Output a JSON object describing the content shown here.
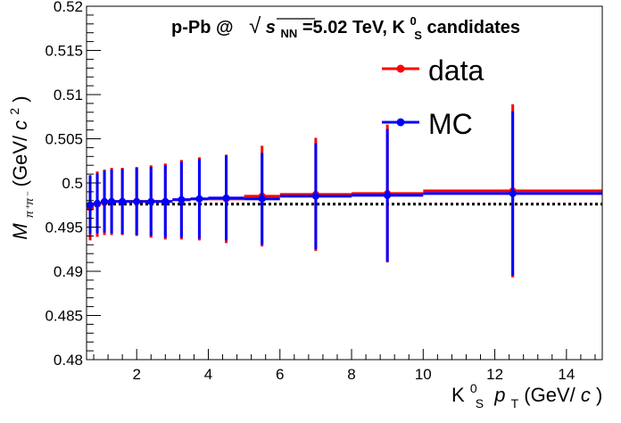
{
  "chart_data": {
    "type": "scatter",
    "title": {
      "system": "p-Pb @",
      "sqrt_symbol": "√",
      "energy_var": "s",
      "energy_sub": "NN",
      "energy_value": "=5.02 TeV, K",
      "particle_sup": "0",
      "particle_sub": "S",
      "particle_rest": " candidates"
    },
    "xlabel": {
      "particle": "K",
      "particle_sup": "0",
      "particle_sub": "S",
      "var": "p",
      "var_sub": "T",
      "unit_open": " (GeV/",
      "unit_var": "c",
      "unit_close": ")"
    },
    "ylabel": {
      "var": "M",
      "var_sub": "π⁺π⁻",
      "unit_open": " (GeV/",
      "unit_var": "c",
      "unit_sup": "2",
      "unit_close": ")"
    },
    "xlim": [
      0.6,
      15
    ],
    "ylim": [
      0.48,
      0.52
    ],
    "x_ticks": [
      2,
      4,
      6,
      8,
      10,
      12,
      14
    ],
    "x_tick_labels": [
      "2",
      "4",
      "6",
      "8",
      "10",
      "12",
      "14"
    ],
    "y_ticks": [
      0.48,
      0.485,
      0.49,
      0.495,
      0.5,
      0.505,
      0.51,
      0.515,
      0.52
    ],
    "y_tick_labels": [
      "0.48",
      "0.485",
      "0.49",
      "0.495",
      "0.5",
      "0.505",
      "0.51",
      "0.515",
      "0.52"
    ],
    "grid": false,
    "legend_position": "top-right",
    "reference_line": {
      "y": 0.4976,
      "style": "dotted",
      "color": "#000000"
    },
    "series": [
      {
        "name": "data",
        "color": "#ff0000",
        "points": [
          {
            "x": 0.7,
            "xlo": 0.6,
            "xhi": 0.8,
            "y": 0.4972,
            "err": 0.0037
          },
          {
            "x": 0.9,
            "xlo": 0.8,
            "xhi": 1.0,
            "y": 0.4976,
            "err": 0.0037
          },
          {
            "x": 1.1,
            "xlo": 1.0,
            "xhi": 1.2,
            "y": 0.4978,
            "err": 0.0037
          },
          {
            "x": 1.3,
            "xlo": 1.2,
            "xhi": 1.4,
            "y": 0.4979,
            "err": 0.0038
          },
          {
            "x": 1.6,
            "xlo": 1.4,
            "xhi": 1.8,
            "y": 0.4979,
            "err": 0.0038
          },
          {
            "x": 2.0,
            "xlo": 1.8,
            "xhi": 2.2,
            "y": 0.4979,
            "err": 0.0039
          },
          {
            "x": 2.4,
            "xlo": 2.2,
            "xhi": 2.6,
            "y": 0.4979,
            "err": 0.0041
          },
          {
            "x": 2.8,
            "xlo": 2.6,
            "xhi": 3.0,
            "y": 0.4979,
            "err": 0.0043
          },
          {
            "x": 3.25,
            "xlo": 3.0,
            "xhi": 3.5,
            "y": 0.4981,
            "err": 0.0045
          },
          {
            "x": 3.75,
            "xlo": 3.5,
            "xhi": 4.0,
            "y": 0.4982,
            "err": 0.0047
          },
          {
            "x": 4.5,
            "xlo": 4.0,
            "xhi": 5.0,
            "y": 0.4982,
            "err": 0.005
          },
          {
            "x": 5.5,
            "xlo": 5.0,
            "xhi": 6.0,
            "y": 0.4985,
            "err": 0.0057
          },
          {
            "x": 7.0,
            "xlo": 6.0,
            "xhi": 8.0,
            "y": 0.4987,
            "err": 0.0064
          },
          {
            "x": 9.0,
            "xlo": 8.0,
            "xhi": 10.0,
            "y": 0.4988,
            "err": 0.0078
          },
          {
            "x": 12.5,
            "xlo": 10.0,
            "xhi": 15.0,
            "y": 0.4991,
            "err": 0.0098
          }
        ]
      },
      {
        "name": "MC",
        "color": "#0000ff",
        "points": [
          {
            "x": 0.7,
            "xlo": 0.6,
            "xhi": 0.8,
            "y": 0.4975,
            "err": 0.0033
          },
          {
            "x": 0.9,
            "xlo": 0.8,
            "xhi": 1.0,
            "y": 0.4977,
            "err": 0.0034
          },
          {
            "x": 1.1,
            "xlo": 1.0,
            "xhi": 1.2,
            "y": 0.4979,
            "err": 0.0035
          },
          {
            "x": 1.3,
            "xlo": 1.2,
            "xhi": 1.4,
            "y": 0.4979,
            "err": 0.0036
          },
          {
            "x": 1.6,
            "xlo": 1.4,
            "xhi": 1.8,
            "y": 0.4979,
            "err": 0.0037
          },
          {
            "x": 2.0,
            "xlo": 1.8,
            "xhi": 2.2,
            "y": 0.4979,
            "err": 0.0038
          },
          {
            "x": 2.4,
            "xlo": 2.2,
            "xhi": 2.6,
            "y": 0.4979,
            "err": 0.0039
          },
          {
            "x": 2.8,
            "xlo": 2.6,
            "xhi": 3.0,
            "y": 0.4979,
            "err": 0.0041
          },
          {
            "x": 3.25,
            "xlo": 3.0,
            "xhi": 3.5,
            "y": 0.4981,
            "err": 0.0043
          },
          {
            "x": 3.75,
            "xlo": 3.5,
            "xhi": 4.0,
            "y": 0.4982,
            "err": 0.0045
          },
          {
            "x": 4.5,
            "xlo": 4.0,
            "xhi": 5.0,
            "y": 0.4983,
            "err": 0.0048
          },
          {
            "x": 5.5,
            "xlo": 5.0,
            "xhi": 6.0,
            "y": 0.4982,
            "err": 0.0052
          },
          {
            "x": 7.0,
            "xlo": 6.0,
            "xhi": 8.0,
            "y": 0.4985,
            "err": 0.006
          },
          {
            "x": 9.0,
            "xlo": 8.0,
            "xhi": 10.0,
            "y": 0.4986,
            "err": 0.0075
          },
          {
            "x": 12.5,
            "xlo": 10.0,
            "xhi": 15.0,
            "y": 0.4988,
            "err": 0.0093
          }
        ]
      }
    ]
  }
}
